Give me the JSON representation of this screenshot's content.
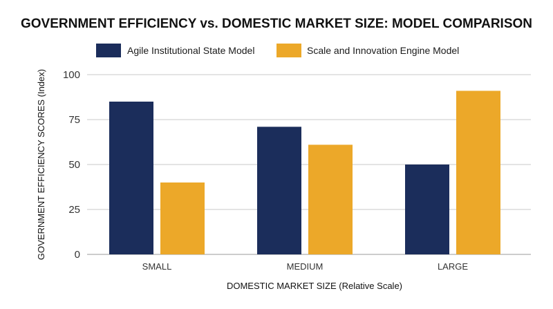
{
  "chart_data": {
    "type": "bar",
    "title": "GOVERNMENT EFFICIENCY vs. DOMESTIC MARKET SIZE: MODEL COMPARISON",
    "xlabel": "DOMESTIC MARKET SIZE (Relative Scale)",
    "ylabel": "GOVERNMENT EFFICIENCY SCORES (Index)",
    "categories": [
      "SMALL",
      "MEDIUM",
      "LARGE"
    ],
    "series": [
      {
        "name": "Agile Institutional State Model",
        "color": "#1b2d5b",
        "values": [
          85,
          71,
          50
        ]
      },
      {
        "name": "Scale and Innovation Engine Model",
        "color": "#eca829",
        "values": [
          40,
          61,
          91
        ]
      }
    ],
    "ylim": [
      0,
      100
    ],
    "yticks": [
      0,
      25,
      50,
      75,
      100
    ],
    "grid": true,
    "legend_position": "top-center"
  }
}
